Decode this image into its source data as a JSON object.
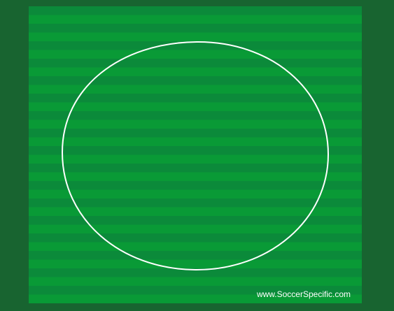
{
  "pitch": {
    "stripe_colors": [
      "#0b8a3a",
      "#099a36"
    ],
    "line_color": "#ffffff"
  },
  "background_color": "#186430",
  "credit": {
    "text": "www.SoccerSpecific.com"
  }
}
